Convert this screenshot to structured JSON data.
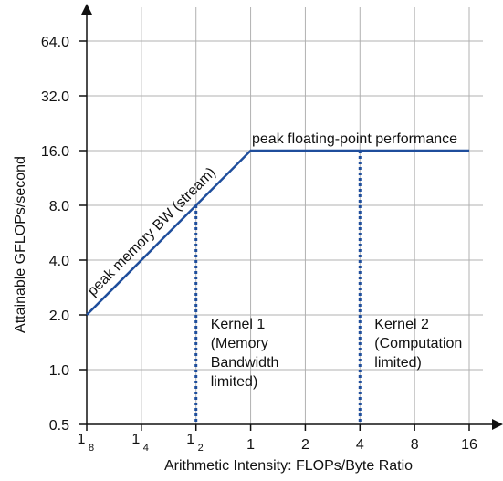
{
  "chart_data": {
    "type": "line",
    "title": "",
    "xlabel": "Arithmetic Intensity: FLOPs/Byte Ratio",
    "ylabel": "Attainable GFLOPs/second",
    "x_scale": "log2",
    "y_scale": "log2",
    "xlim": [
      0.125,
      16
    ],
    "ylim": [
      0.5,
      64
    ],
    "grid": true,
    "x_ticks": [
      {
        "value": 0.125,
        "num": "1",
        "den": "8"
      },
      {
        "value": 0.25,
        "num": "1",
        "den": "4"
      },
      {
        "value": 0.5,
        "num": "1",
        "den": "2"
      },
      {
        "value": 1,
        "label": "1"
      },
      {
        "value": 2,
        "label": "2"
      },
      {
        "value": 4,
        "label": "4"
      },
      {
        "value": 8,
        "label": "8"
      },
      {
        "value": 16,
        "label": "16"
      }
    ],
    "y_ticks": [
      {
        "value": 0.5,
        "label": "0.5"
      },
      {
        "value": 1,
        "label": "1.0"
      },
      {
        "value": 2,
        "label": "2.0"
      },
      {
        "value": 4,
        "label": "4.0"
      },
      {
        "value": 8,
        "label": "8.0"
      },
      {
        "value": 16,
        "label": "16.0"
      },
      {
        "value": 32,
        "label": "32.0"
      },
      {
        "value": 64,
        "label": "64.0"
      }
    ],
    "series": [
      {
        "color": "#1f4e9c",
        "x": [
          0.125,
          1,
          16
        ],
        "y": [
          2,
          16,
          16
        ]
      }
    ],
    "segment_labels": {
      "memory": "peak memory BW (stream)",
      "compute": "peak floating-point performance"
    },
    "kernels": [
      {
        "x": 0.5,
        "y_top": 8,
        "lines": [
          "Kernel 1",
          "(Memory",
          "Bandwidth",
          "limited)"
        ]
      },
      {
        "x": 4,
        "y_top": 16,
        "lines": [
          "Kernel 2",
          "(Computation",
          "limited)"
        ]
      }
    ],
    "line_color": "#1f4e9c",
    "grid_color": "#b0b0b0"
  }
}
